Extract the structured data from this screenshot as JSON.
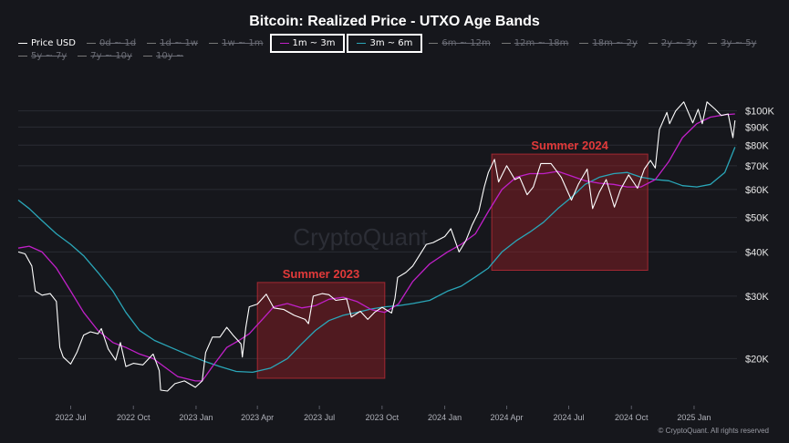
{
  "chart_data": {
    "type": "line",
    "title": "Bitcoin: Realized Price - UTXO Age Bands",
    "y_scale": "log",
    "ylim": [
      15000,
      115000
    ],
    "x_range": [
      "2022-04-15",
      "2025-03-05"
    ],
    "x_ticks": [
      {
        "label": "2022 Jul",
        "date": "2022-07-01"
      },
      {
        "label": "2022 Oct",
        "date": "2022-10-01"
      },
      {
        "label": "2023 Jan",
        "date": "2023-01-01"
      },
      {
        "label": "2023 Apr",
        "date": "2023-04-01"
      },
      {
        "label": "2023 Jul",
        "date": "2023-07-01"
      },
      {
        "label": "2023 Oct",
        "date": "2023-10-01"
      },
      {
        "label": "2024 Jan",
        "date": "2024-01-01"
      },
      {
        "label": "2024 Apr",
        "date": "2024-04-01"
      },
      {
        "label": "2024 Jul",
        "date": "2024-07-01"
      },
      {
        "label": "2024 Oct",
        "date": "2024-10-01"
      },
      {
        "label": "2025 Jan",
        "date": "2025-01-01"
      }
    ],
    "y_ticks": [
      {
        "label": "$100K",
        "value": 100000
      },
      {
        "label": "$90K",
        "value": 90000
      },
      {
        "label": "$80K",
        "value": 80000
      },
      {
        "label": "$70K",
        "value": 70000
      },
      {
        "label": "$60K",
        "value": 60000
      },
      {
        "label": "$50K",
        "value": 50000
      },
      {
        "label": "$40K",
        "value": 40000
      },
      {
        "label": "$30K",
        "value": 30000
      },
      {
        "label": "$20K",
        "value": 20000
      }
    ],
    "grid": "horizontal",
    "legend_position": "top",
    "legend": [
      {
        "name": "Price USD",
        "visible": true,
        "highlight": false,
        "color": "#ffffff"
      },
      {
        "name": "0d ~ 1d",
        "visible": false,
        "highlight": false,
        "color": "#777777"
      },
      {
        "name": "1d ~ 1w",
        "visible": false,
        "highlight": false,
        "color": "#777777"
      },
      {
        "name": "1w ~ 1m",
        "visible": false,
        "highlight": false,
        "color": "#777777"
      },
      {
        "name": "1m ~ 3m",
        "visible": true,
        "highlight": true,
        "color": "#c020c8"
      },
      {
        "name": "3m ~ 6m",
        "visible": true,
        "highlight": true,
        "color": "#2aa6b8"
      },
      {
        "name": "6m ~ 12m",
        "visible": false,
        "highlight": false,
        "color": "#777777"
      },
      {
        "name": "12m ~ 18m",
        "visible": false,
        "highlight": false,
        "color": "#777777"
      },
      {
        "name": "18m ~ 2y",
        "visible": false,
        "highlight": false,
        "color": "#777777"
      },
      {
        "name": "2y ~ 3y",
        "visible": false,
        "highlight": false,
        "color": "#777777"
      },
      {
        "name": "3y ~ 5y",
        "visible": false,
        "highlight": false,
        "color": "#777777"
      },
      {
        "name": "5y ~ 7y",
        "visible": false,
        "highlight": false,
        "color": "#777777"
      },
      {
        "name": "7y ~ 10y",
        "visible": false,
        "highlight": false,
        "color": "#777777"
      },
      {
        "name": "10y ~",
        "visible": false,
        "highlight": false,
        "color": "#777777"
      }
    ],
    "series": [
      {
        "name": "Price USD",
        "color": "#ffffff",
        "points": [
          [
            "2022-04-15",
            40000
          ],
          [
            "2022-04-25",
            39500
          ],
          [
            "2022-05-05",
            36500
          ],
          [
            "2022-05-10",
            31000
          ],
          [
            "2022-05-20",
            30200
          ],
          [
            "2022-06-01",
            30500
          ],
          [
            "2022-06-10",
            29000
          ],
          [
            "2022-06-15",
            21500
          ],
          [
            "2022-06-20",
            20200
          ],
          [
            "2022-07-01",
            19300
          ],
          [
            "2022-07-10",
            20800
          ],
          [
            "2022-07-20",
            23300
          ],
          [
            "2022-07-30",
            23800
          ],
          [
            "2022-08-10",
            23500
          ],
          [
            "2022-08-15",
            24300
          ],
          [
            "2022-08-25",
            21300
          ],
          [
            "2022-09-05",
            19800
          ],
          [
            "2022-09-12",
            22200
          ],
          [
            "2022-09-20",
            19000
          ],
          [
            "2022-10-01",
            19400
          ],
          [
            "2022-10-15",
            19200
          ],
          [
            "2022-10-30",
            20600
          ],
          [
            "2022-11-08",
            18500
          ],
          [
            "2022-11-10",
            16300
          ],
          [
            "2022-11-20",
            16200
          ],
          [
            "2022-12-01",
            17000
          ],
          [
            "2022-12-15",
            17300
          ],
          [
            "2022-12-31",
            16600
          ],
          [
            "2023-01-10",
            17300
          ],
          [
            "2023-01-15",
            20800
          ],
          [
            "2023-01-25",
            23000
          ],
          [
            "2023-02-05",
            23000
          ],
          [
            "2023-02-15",
            24500
          ],
          [
            "2023-02-25",
            23200
          ],
          [
            "2023-03-08",
            22000
          ],
          [
            "2023-03-10",
            20200
          ],
          [
            "2023-03-15",
            24500
          ],
          [
            "2023-03-20",
            28000
          ],
          [
            "2023-04-01",
            28500
          ],
          [
            "2023-04-14",
            30400
          ],
          [
            "2023-04-25",
            27800
          ],
          [
            "2023-05-10",
            27500
          ],
          [
            "2023-05-25",
            26500
          ],
          [
            "2023-06-10",
            25800
          ],
          [
            "2023-06-15",
            25100
          ],
          [
            "2023-06-22",
            30000
          ],
          [
            "2023-07-05",
            30500
          ],
          [
            "2023-07-15",
            30300
          ],
          [
            "2023-07-25",
            29200
          ],
          [
            "2023-08-10",
            29500
          ],
          [
            "2023-08-17",
            26200
          ],
          [
            "2023-08-30",
            27200
          ],
          [
            "2023-09-10",
            25800
          ],
          [
            "2023-09-20",
            27000
          ],
          [
            "2023-10-01",
            27900
          ],
          [
            "2023-10-15",
            26900
          ],
          [
            "2023-10-20",
            29600
          ],
          [
            "2023-10-24",
            33900
          ],
          [
            "2023-11-05",
            35000
          ],
          [
            "2023-11-15",
            36500
          ],
          [
            "2023-12-05",
            42000
          ],
          [
            "2023-12-15",
            42500
          ],
          [
            "2024-01-01",
            44200
          ],
          [
            "2024-01-10",
            46500
          ],
          [
            "2024-01-22",
            40000
          ],
          [
            "2024-02-01",
            43000
          ],
          [
            "2024-02-10",
            47500
          ],
          [
            "2024-02-20",
            52000
          ],
          [
            "2024-02-28",
            61000
          ],
          [
            "2024-03-05",
            67000
          ],
          [
            "2024-03-14",
            73000
          ],
          [
            "2024-03-20",
            63000
          ],
          [
            "2024-04-01",
            70000
          ],
          [
            "2024-04-13",
            64000
          ],
          [
            "2024-04-20",
            65000
          ],
          [
            "2024-05-01",
            58000
          ],
          [
            "2024-05-10",
            61000
          ],
          [
            "2024-05-21",
            71000
          ],
          [
            "2024-06-05",
            71000
          ],
          [
            "2024-06-20",
            65000
          ],
          [
            "2024-07-05",
            56000
          ],
          [
            "2024-07-15",
            62000
          ],
          [
            "2024-07-28",
            68500
          ],
          [
            "2024-08-05",
            53000
          ],
          [
            "2024-08-15",
            59000
          ],
          [
            "2024-08-25",
            64000
          ],
          [
            "2024-09-06",
            53500
          ],
          [
            "2024-09-15",
            60000
          ],
          [
            "2024-09-27",
            66000
          ],
          [
            "2024-10-10",
            60500
          ],
          [
            "2024-10-20",
            68500
          ],
          [
            "2024-10-29",
            72500
          ],
          [
            "2024-11-05",
            69000
          ],
          [
            "2024-11-11",
            88500
          ],
          [
            "2024-11-22",
            99000
          ],
          [
            "2024-11-26",
            92000
          ],
          [
            "2024-12-05",
            100000
          ],
          [
            "2024-12-17",
            106000
          ],
          [
            "2024-12-30",
            92500
          ],
          [
            "2025-01-07",
            101000
          ],
          [
            "2025-01-13",
            92000
          ],
          [
            "2025-01-20",
            106000
          ],
          [
            "2025-02-01",
            101000
          ],
          [
            "2025-02-10",
            97000
          ],
          [
            "2025-02-20",
            98000
          ],
          [
            "2025-02-27",
            84000
          ],
          [
            "2025-03-02",
            94000
          ]
        ]
      },
      {
        "name": "1m ~ 3m",
        "color": "#c020c8",
        "points": [
          [
            "2022-04-15",
            41000
          ],
          [
            "2022-05-01",
            41500
          ],
          [
            "2022-05-20",
            40000
          ],
          [
            "2022-06-10",
            36000
          ],
          [
            "2022-07-01",
            31000
          ],
          [
            "2022-07-20",
            27000
          ],
          [
            "2022-08-10",
            24000
          ],
          [
            "2022-09-01",
            22200
          ],
          [
            "2022-09-20",
            21500
          ],
          [
            "2022-10-10",
            20600
          ],
          [
            "2022-10-30",
            20000
          ],
          [
            "2022-11-15",
            19000
          ],
          [
            "2022-12-05",
            17800
          ],
          [
            "2022-12-31",
            17300
          ],
          [
            "2023-01-10",
            17300
          ],
          [
            "2023-01-25",
            19000
          ],
          [
            "2023-02-15",
            21500
          ],
          [
            "2023-03-05",
            22500
          ],
          [
            "2023-03-20",
            23500
          ],
          [
            "2023-04-10",
            26000
          ],
          [
            "2023-04-25",
            28000
          ],
          [
            "2023-05-15",
            28600
          ],
          [
            "2023-06-05",
            27800
          ],
          [
            "2023-06-25",
            28200
          ],
          [
            "2023-07-15",
            29400
          ],
          [
            "2023-08-05",
            29800
          ],
          [
            "2023-08-25",
            29000
          ],
          [
            "2023-09-15",
            27500
          ],
          [
            "2023-10-05",
            27000
          ],
          [
            "2023-10-25",
            28500
          ],
          [
            "2023-11-15",
            33000
          ],
          [
            "2023-12-10",
            37000
          ],
          [
            "2024-01-05",
            40000
          ],
          [
            "2024-01-25",
            42000
          ],
          [
            "2024-02-15",
            45000
          ],
          [
            "2024-03-05",
            52000
          ],
          [
            "2024-03-25",
            60000
          ],
          [
            "2024-04-15",
            65000
          ],
          [
            "2024-05-05",
            66500
          ],
          [
            "2024-05-25",
            66500
          ],
          [
            "2024-06-15",
            67500
          ],
          [
            "2024-07-05",
            65500
          ],
          [
            "2024-07-25",
            63500
          ],
          [
            "2024-08-15",
            62500
          ],
          [
            "2024-09-05",
            62000
          ],
          [
            "2024-09-25",
            61000
          ],
          [
            "2024-10-15",
            61000
          ],
          [
            "2024-11-05",
            64000
          ],
          [
            "2024-11-25",
            72000
          ],
          [
            "2024-12-15",
            84000
          ],
          [
            "2025-01-05",
            92000
          ],
          [
            "2025-01-25",
            96000
          ],
          [
            "2025-02-15",
            97500
          ],
          [
            "2025-03-02",
            98000
          ]
        ]
      },
      {
        "name": "3m ~ 6m",
        "color": "#2aa6b8",
        "points": [
          [
            "2022-04-15",
            56000
          ],
          [
            "2022-05-01",
            53000
          ],
          [
            "2022-05-20",
            49000
          ],
          [
            "2022-06-10",
            45000
          ],
          [
            "2022-07-01",
            42000
          ],
          [
            "2022-07-20",
            39000
          ],
          [
            "2022-08-10",
            35000
          ],
          [
            "2022-09-01",
            31000
          ],
          [
            "2022-09-20",
            27000
          ],
          [
            "2022-10-10",
            24000
          ],
          [
            "2022-11-01",
            22500
          ],
          [
            "2022-11-25",
            21500
          ],
          [
            "2022-12-20",
            20500
          ],
          [
            "2023-01-15",
            19600
          ],
          [
            "2023-02-05",
            19000
          ],
          [
            "2023-03-01",
            18400
          ],
          [
            "2023-03-25",
            18300
          ],
          [
            "2023-04-20",
            18800
          ],
          [
            "2023-05-15",
            20000
          ],
          [
            "2023-06-05",
            22000
          ],
          [
            "2023-06-25",
            24000
          ],
          [
            "2023-07-15",
            25600
          ],
          [
            "2023-08-05",
            26500
          ],
          [
            "2023-08-25",
            27000
          ],
          [
            "2023-09-15",
            27600
          ],
          [
            "2023-10-05",
            28000
          ],
          [
            "2023-10-25",
            28200
          ],
          [
            "2023-11-15",
            28600
          ],
          [
            "2023-12-10",
            29200
          ],
          [
            "2024-01-05",
            31000
          ],
          [
            "2024-01-25",
            32000
          ],
          [
            "2024-02-15",
            34000
          ],
          [
            "2024-03-05",
            36000
          ],
          [
            "2024-03-25",
            40000
          ],
          [
            "2024-04-15",
            43000
          ],
          [
            "2024-05-05",
            45500
          ],
          [
            "2024-05-25",
            48500
          ],
          [
            "2024-06-15",
            53000
          ],
          [
            "2024-07-05",
            57000
          ],
          [
            "2024-07-25",
            62000
          ],
          [
            "2024-08-15",
            65000
          ],
          [
            "2024-09-05",
            66500
          ],
          [
            "2024-09-25",
            67000
          ],
          [
            "2024-10-15",
            65000
          ],
          [
            "2024-11-05",
            64000
          ],
          [
            "2024-11-25",
            63500
          ],
          [
            "2024-12-15",
            61500
          ],
          [
            "2025-01-05",
            61000
          ],
          [
            "2025-01-25",
            62000
          ],
          [
            "2025-02-15",
            67000
          ],
          [
            "2025-03-02",
            79000
          ]
        ]
      }
    ],
    "annotations": [
      {
        "label": "Summer 2023",
        "x_start": "2023-04-01",
        "x_end": "2023-10-05",
        "y_low": 17600,
        "y_high": 32800,
        "color": "#e23a3a"
      },
      {
        "label": "Summer 2024",
        "x_start": "2024-03-10",
        "x_end": "2024-10-25",
        "y_low": 35500,
        "y_high": 75500,
        "color": "#e23a3a"
      }
    ],
    "watermark": "CryptoQuant",
    "source": "© CryptoQuant. All rights reserved"
  }
}
